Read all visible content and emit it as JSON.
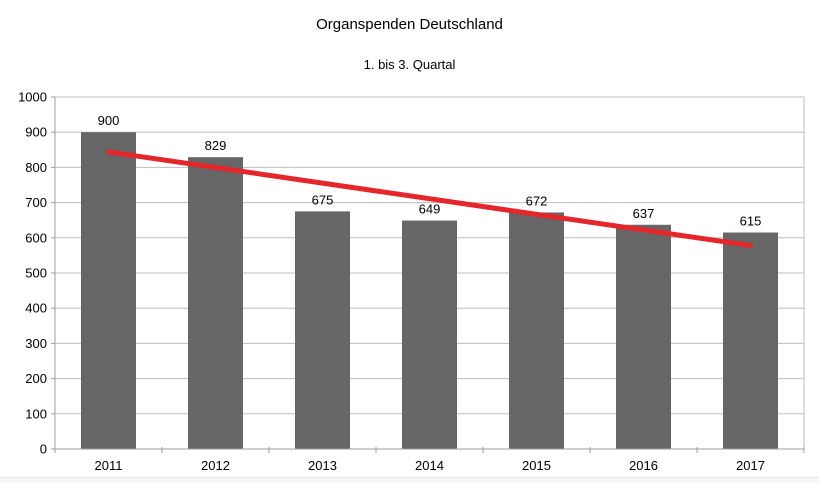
{
  "chart_data": {
    "type": "bar",
    "title": "Organspenden Deutschland",
    "subtitle": "1. bis 3. Quartal",
    "categories": [
      "2011",
      "2012",
      "2013",
      "2014",
      "2015",
      "2016",
      "2017"
    ],
    "values": [
      900,
      829,
      675,
      649,
      672,
      637,
      615
    ],
    "data_labels": [
      900,
      829,
      675,
      649,
      672,
      637,
      615
    ],
    "y_ticks": [
      0,
      100,
      200,
      300,
      400,
      500,
      600,
      700,
      800,
      900,
      1000
    ],
    "ylim": [
      0,
      1000
    ],
    "xlabel": "",
    "ylabel": "",
    "grid": "horizontal",
    "legend": "none",
    "trend_line": {
      "type": "linear",
      "start_value": 844,
      "end_value": 578
    }
  },
  "colors": {
    "background": "#ffffff",
    "bar": "#666666",
    "trend": "#e5262b",
    "grid": "#bdbdbd",
    "axis": "#9e9e9e",
    "text": "#000000",
    "window_edge": "#f4f6fa"
  }
}
